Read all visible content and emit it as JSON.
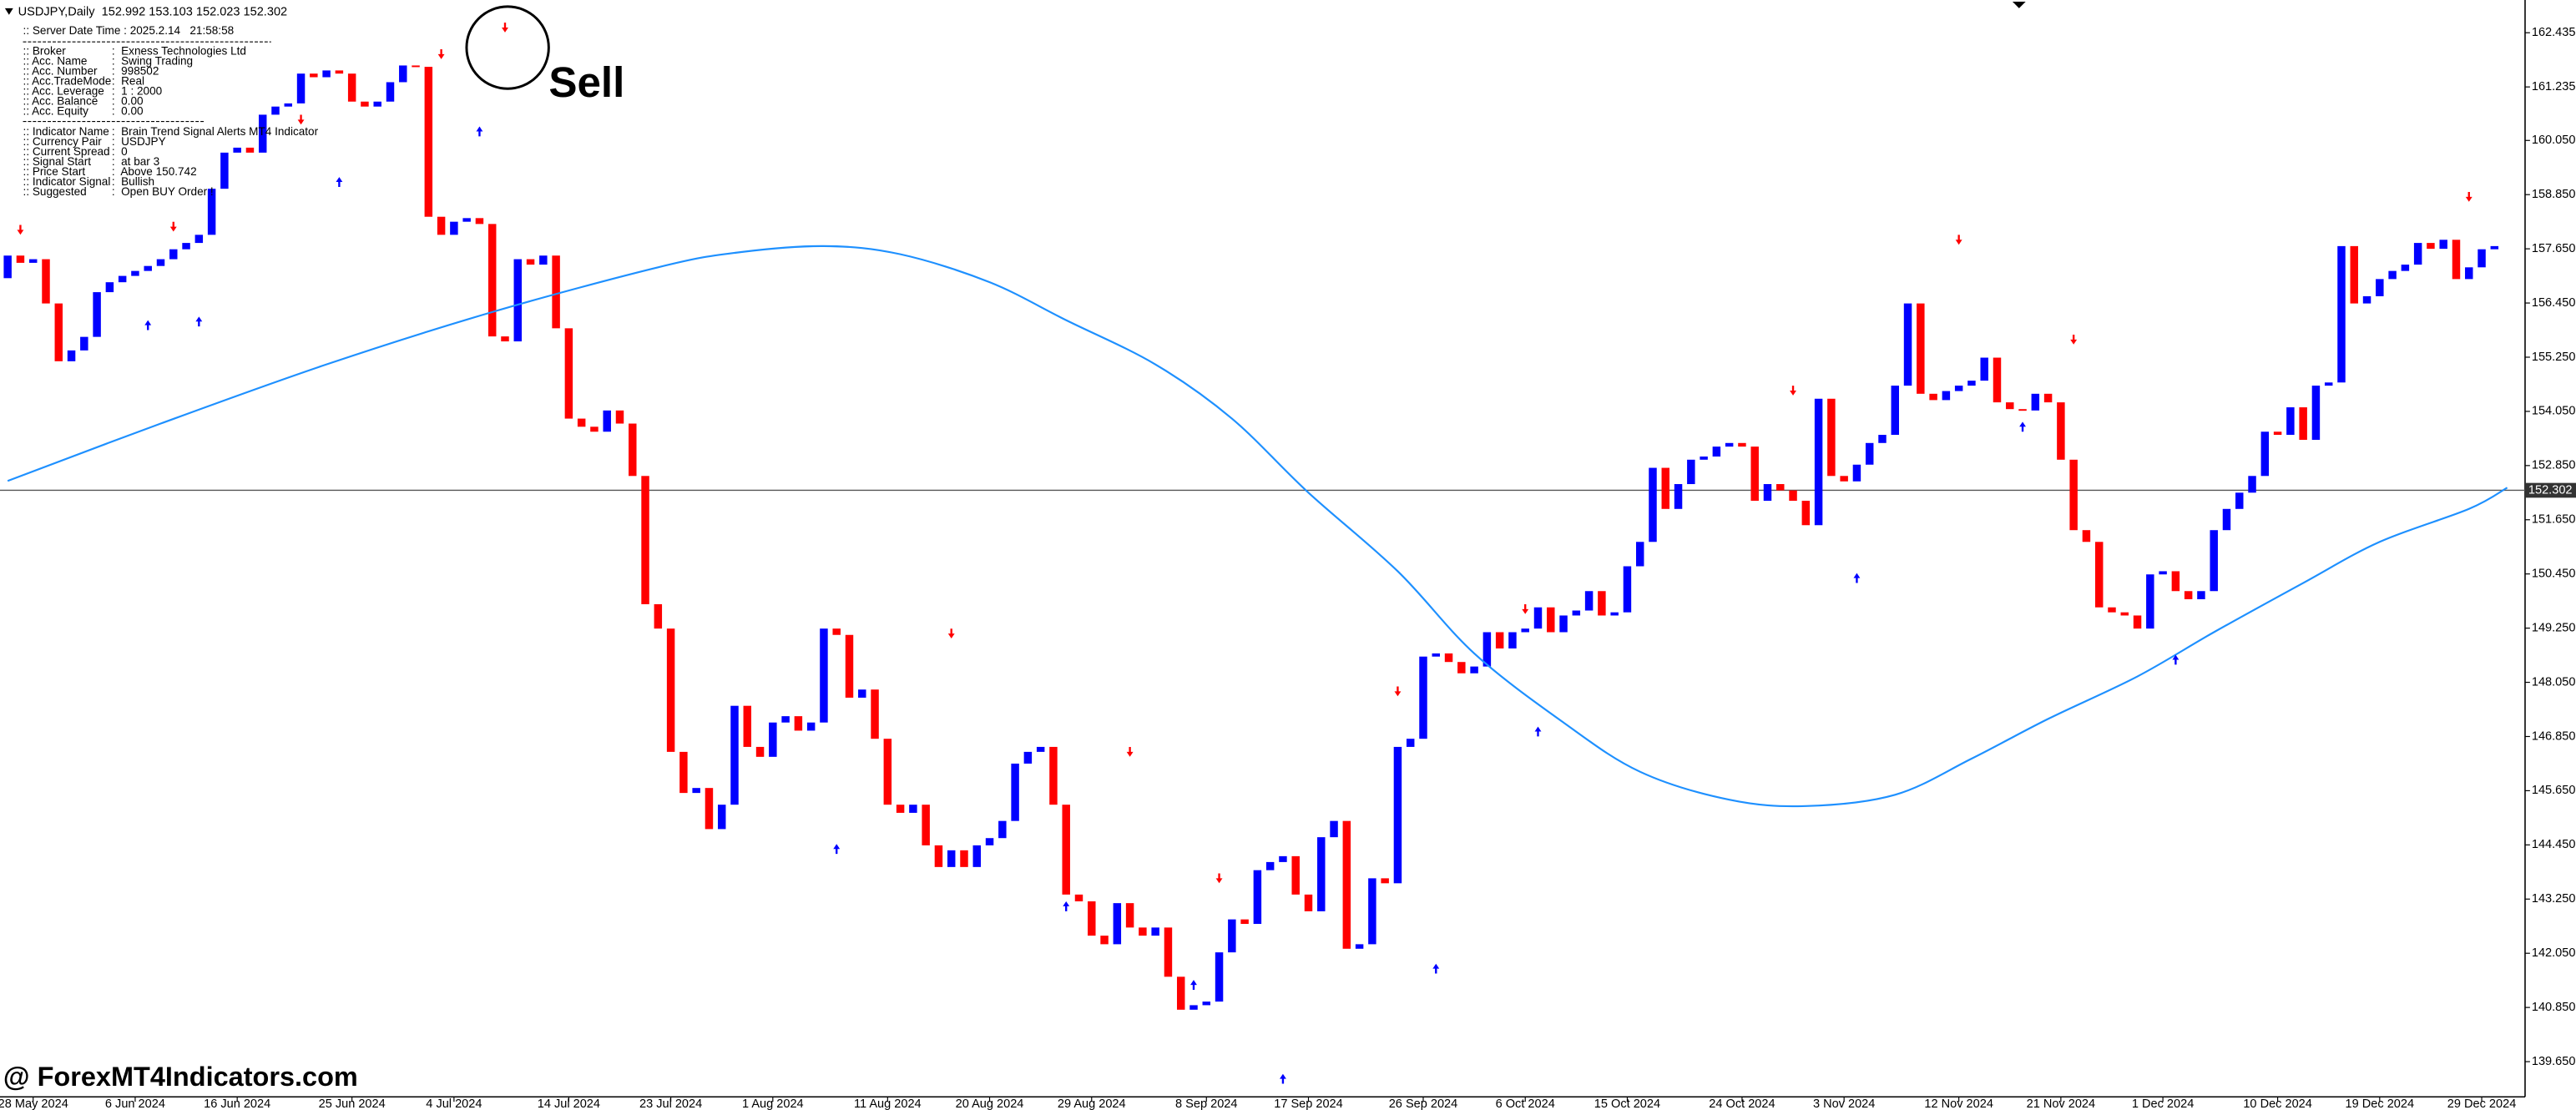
{
  "chart_data": {
    "type": "candlestick",
    "title": "USDJPY,Daily  152.992 153.103 152.023 152.302",
    "up_color": "#0000ff",
    "down_color": "#ff0000",
    "open": [
      157.0,
      157.5,
      157.34,
      157.42,
      156.44,
      155.16,
      155.4,
      155.7,
      156.69,
      156.91,
      157.05,
      157.16,
      157.27,
      157.42,
      157.64,
      157.78,
      157.96,
      158.98,
      159.78,
      159.89,
      159.78,
      160.62,
      160.8,
      160.87,
      161.53,
      161.45,
      161.6,
      161.53,
      160.91,
      160.8,
      160.91,
      161.34,
      161.71,
      161.68,
      158.36,
      157.96,
      158.25,
      158.33,
      158.2,
      155.71,
      155.6,
      157.42,
      157.3,
      157.5,
      155.89,
      153.89,
      153.71,
      153.6,
      154.07,
      153.78,
      152.62,
      149.78,
      149.24,
      146.51,
      145.6,
      145.71,
      144.8,
      145.34,
      147.53,
      146.62,
      146.4,
      147.16,
      147.3,
      146.98,
      147.16,
      149.24,
      149.1,
      147.71,
      147.89,
      146.8,
      145.34,
      145.16,
      145.34,
      144.44,
      143.96,
      144.33,
      143.96,
      144.44,
      144.6,
      144.98,
      146.25,
      146.51,
      146.62,
      145.34,
      143.35,
      143.2,
      142.44,
      142.25,
      143.16,
      142.62,
      142.44,
      142.62,
      141.53,
      140.8,
      140.9,
      140.98,
      142.07,
      142.8,
      142.7,
      143.89,
      144.07,
      144.2,
      143.35,
      142.98,
      144.62,
      144.98,
      142.15,
      142.25,
      143.71,
      143.6,
      146.62,
      146.8,
      148.62,
      148.69,
      148.5,
      148.25,
      148.4,
      149.16,
      148.8,
      149.16,
      149.24,
      149.71,
      149.16,
      149.53,
      149.64,
      150.07,
      149.53,
      149.6,
      150.62,
      151.16,
      152.8,
      151.89,
      152.44,
      152.98,
      153.05,
      153.27,
      153.35,
      153.27,
      152.07,
      152.44,
      152.3,
      152.07,
      151.53,
      154.33,
      152.62,
      152.5,
      152.87,
      153.35,
      153.53,
      154.62,
      156.44,
      154.44,
      154.3,
      154.5,
      154.62,
      154.73,
      155.24,
      154.25,
      154.1,
      154.07,
      154.44,
      154.25,
      152.98,
      151.42,
      151.16,
      149.71,
      149.6,
      149.53,
      149.24,
      150.44,
      150.51,
      150.07,
      149.89,
      150.07,
      151.42,
      151.89,
      152.25,
      152.62,
      153.6,
      153.53,
      154.14,
      153.42,
      154.62,
      154.69,
      157.71,
      156.44,
      156.6,
      156.98,
      157.16,
      157.3,
      157.78,
      157.65,
      157.85,
      156.98,
      157.24,
      157.64
    ],
    "close": [
      157.5,
      157.34,
      157.42,
      156.44,
      155.16,
      155.4,
      155.7,
      156.69,
      156.91,
      157.05,
      157.16,
      157.27,
      157.42,
      157.64,
      157.78,
      157.96,
      158.98,
      159.78,
      159.89,
      159.78,
      160.62,
      160.8,
      160.87,
      161.53,
      161.45,
      161.6,
      161.53,
      160.91,
      160.8,
      160.91,
      161.34,
      161.71,
      161.68,
      158.36,
      157.96,
      158.25,
      158.33,
      158.2,
      155.71,
      155.6,
      157.42,
      157.3,
      157.5,
      155.89,
      153.89,
      153.71,
      153.6,
      154.07,
      153.78,
      152.62,
      149.78,
      149.24,
      146.51,
      145.6,
      145.71,
      144.8,
      145.34,
      147.53,
      146.62,
      146.4,
      147.16,
      147.3,
      146.98,
      147.16,
      149.24,
      149.1,
      147.71,
      147.89,
      146.8,
      145.34,
      145.16,
      145.34,
      144.44,
      143.96,
      144.33,
      143.96,
      144.44,
      144.6,
      144.98,
      146.25,
      146.51,
      146.62,
      145.34,
      143.35,
      143.2,
      142.44,
      142.25,
      143.16,
      142.62,
      142.44,
      142.62,
      141.53,
      140.8,
      140.9,
      140.98,
      142.07,
      142.8,
      142.7,
      143.89,
      144.07,
      144.2,
      143.35,
      142.98,
      144.62,
      144.98,
      142.15,
      142.25,
      143.71,
      143.6,
      146.62,
      146.8,
      148.62,
      148.69,
      148.5,
      148.25,
      148.4,
      149.16,
      148.8,
      149.16,
      149.24,
      149.71,
      149.16,
      149.53,
      149.64,
      150.07,
      149.53,
      149.6,
      150.62,
      151.16,
      152.8,
      151.89,
      152.44,
      152.98,
      153.05,
      153.27,
      153.35,
      153.27,
      152.07,
      152.44,
      152.3,
      152.07,
      151.53,
      154.33,
      152.62,
      152.5,
      152.87,
      153.35,
      153.53,
      154.62,
      156.44,
      154.44,
      154.3,
      154.5,
      154.62,
      154.73,
      155.24,
      154.25,
      154.1,
      154.07,
      154.44,
      154.25,
      152.98,
      151.42,
      151.16,
      149.71,
      149.6,
      149.53,
      149.24,
      150.44,
      150.51,
      150.07,
      149.89,
      150.07,
      151.42,
      151.89,
      152.25,
      152.62,
      153.6,
      153.53,
      154.14,
      153.42,
      154.62,
      154.69,
      157.71,
      156.44,
      156.6,
      156.98,
      157.16,
      157.3,
      157.78,
      157.65,
      157.85,
      156.98,
      157.24,
      157.64,
      157.71
    ],
    "ma": {
      "color": "#1e90ff",
      "x": [
        0,
        12,
        25,
        38,
        51,
        57,
        64,
        70,
        77,
        83,
        90,
        96,
        102,
        109,
        115,
        122,
        128,
        135,
        141,
        148,
        154,
        160,
        167,
        173,
        180,
        186,
        193,
        196
      ],
      "values": [
        152.51,
        153.78,
        155.09,
        156.25,
        157.24,
        157.56,
        157.71,
        157.53,
        156.91,
        156.07,
        155.09,
        153.89,
        152.25,
        150.51,
        148.69,
        147.16,
        146.07,
        145.45,
        145.31,
        145.56,
        146.36,
        147.24,
        148.18,
        149.16,
        150.25,
        151.16,
        151.89,
        152.36
      ]
    },
    "sell_signals": [
      {
        "bar": 1,
        "price": 158.07
      },
      {
        "bar": 13,
        "price": 158.14
      },
      {
        "bar": 23,
        "price": 160.51
      },
      {
        "bar": 34,
        "price": 161.96
      },
      {
        "bar": 39,
        "price": 162.55
      },
      {
        "bar": 74,
        "price": 149.13
      },
      {
        "bar": 88,
        "price": 146.51
      },
      {
        "bar": 95,
        "price": 143.71
      },
      {
        "bar": 109,
        "price": 147.85
      },
      {
        "bar": 119,
        "price": 149.67
      },
      {
        "bar": 140,
        "price": 154.51
      },
      {
        "bar": 153,
        "price": 157.85
      },
      {
        "bar": 162,
        "price": 155.64
      },
      {
        "bar": 193,
        "price": 158.8
      }
    ],
    "buy_signals": [
      {
        "bar": 11,
        "price": 155.96
      },
      {
        "bar": 15,
        "price": 156.04
      },
      {
        "bar": 26,
        "price": 159.13
      },
      {
        "bar": 37,
        "price": 160.25
      },
      {
        "bar": 65,
        "price": 144.36
      },
      {
        "bar": 83,
        "price": 143.09
      },
      {
        "bar": 93,
        "price": 141.35
      },
      {
        "bar": 100,
        "price": 139.27
      },
      {
        "bar": 112,
        "price": 141.71
      },
      {
        "bar": 120,
        "price": 146.96
      },
      {
        "bar": 145,
        "price": 150.36
      },
      {
        "bar": 158,
        "price": 153.71
      },
      {
        "bar": 170,
        "price": 148.55
      }
    ],
    "current_price": 152.302,
    "xlim": [
      -0.6,
      197.4
    ],
    "ylim": [
      138.87,
      163.16
    ],
    "yticks": [
      162.435,
      161.235,
      {
        "value": 160.05,
        "label": "160.050"
      },
      {
        "value": 158.85,
        "label": "158.850"
      },
      {
        "value": 157.65,
        "label": "157.650"
      },
      {
        "value": 156.45,
        "label": "156.450"
      },
      {
        "value": 155.25,
        "label": "155.250"
      },
      {
        "value": 154.05,
        "label": "154.050"
      },
      {
        "value": 152.85,
        "label": "152.850"
      },
      {
        "value": 151.65,
        "label": "151.650"
      },
      {
        "value": 150.45,
        "label": "150.450"
      },
      {
        "value": 149.25,
        "label": "149.250"
      },
      {
        "value": 148.05,
        "label": "148.050"
      },
      {
        "value": 146.85,
        "label": "146.850"
      },
      {
        "value": 145.65,
        "label": "145.650"
      },
      {
        "value": 144.45,
        "label": "144.450"
      },
      {
        "value": 143.25,
        "label": "143.250"
      },
      {
        "value": 142.05,
        "label": "142.050"
      },
      {
        "value": 140.85,
        "label": "140.850"
      },
      {
        "value": 139.65,
        "label": "139.650"
      }
    ],
    "xticks": [
      {
        "value": 2,
        "label": "28 May 2024"
      },
      {
        "value": 10,
        "label": "6 Jun 2024"
      },
      {
        "value": 18,
        "label": "16 Jun 2024"
      },
      {
        "value": 27,
        "label": "25 Jun 2024"
      },
      {
        "value": 35,
        "label": "4 Jul 2024"
      },
      {
        "value": 44,
        "label": "14 Jul 2024"
      },
      {
        "value": 52,
        "label": "23 Jul 2024"
      },
      {
        "value": 60,
        "label": "1 Aug 2024"
      },
      {
        "value": 69,
        "label": "11 Aug 2024"
      },
      {
        "value": 77,
        "label": "20 Aug 2024"
      },
      {
        "value": 85,
        "label": "29 Aug 2024"
      },
      {
        "value": 94,
        "label": "8 Sep 2024"
      },
      {
        "value": 102,
        "label": "17 Sep 2024"
      },
      {
        "value": 111,
        "label": "26 Sep 2024"
      },
      {
        "value": 119,
        "label": "6 Oct 2024"
      },
      {
        "value": 127,
        "label": "15 Oct 2024"
      },
      {
        "value": 136,
        "label": "24 Oct 2024"
      },
      {
        "value": 144,
        "label": "3 Nov 2024"
      },
      {
        "value": 153,
        "label": "12 Nov 2024"
      },
      {
        "value": 161,
        "label": "21 Nov 2024"
      },
      {
        "value": 169,
        "label": "1 Dec 2024"
      },
      {
        "value": 178,
        "label": "10 Dec 2024"
      },
      {
        "value": 186,
        "label": "19 Dec 2024"
      },
      {
        "value": 194,
        "label": "29 Dec 2024"
      }
    ],
    "annotation": "Sell"
  },
  "panel": {
    "server_time": ":: Server Date Time : 2025.2.14   21:58:58",
    "account": [
      [
        ":: Broker",
        ":  Exness Technologies Ltd"
      ],
      [
        ":: Acc. Name",
        ":  Swing Trading"
      ],
      [
        ":: Acc. Number",
        ":  998502"
      ],
      [
        ":: Acc.TradeMode",
        ":  Real"
      ],
      [
        ":: Acc. Leverage",
        ":  1 : 2000"
      ],
      [
        ":: Acc. Balance",
        ":  0.00"
      ],
      [
        ":: Acc. Equity",
        ":  0.00"
      ]
    ],
    "indicator": [
      [
        ":: Indicator Name",
        ":  Brain Trend Signal Alerts MT4 Indicator"
      ],
      [
        ":: Currency Pair",
        ":  USDJPY"
      ],
      [
        ":: Current Spread",
        ":  0"
      ],
      [
        ":: Signal Start",
        ":  at bar 3"
      ],
      [
        ":: Price Start",
        ":  Above 150.742"
      ],
      [
        ":: Indicator Signal",
        ":  Bullish"
      ],
      [
        ":: Suggested",
        ":  Open BUY Order !"
      ]
    ]
  },
  "watermark": "@ ForexMT4Indicators.com"
}
